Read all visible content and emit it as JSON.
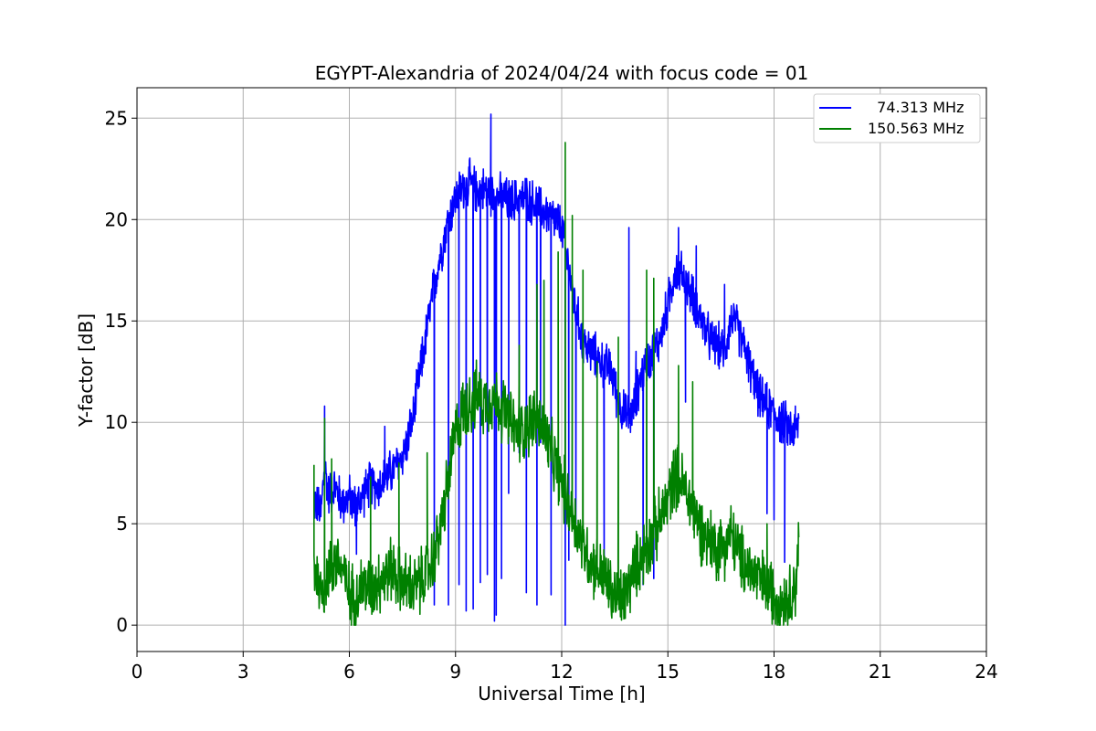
{
  "chart_data": {
    "type": "line",
    "title": "EGYPT-Alexandria of 2024/04/24 with focus code = 01",
    "xlabel": "Universal Time [h]",
    "ylabel": "Y-factor [dB]",
    "xlim": [
      0,
      24
    ],
    "ylim": [
      -1.3,
      26.5
    ],
    "xticks": [
      0,
      3,
      6,
      9,
      12,
      15,
      18,
      21,
      24
    ],
    "yticks": [
      0,
      5,
      10,
      15,
      20,
      25
    ],
    "grid": true,
    "legend_position": "top-right",
    "series": [
      {
        "name": "  74.313 MHz",
        "color": "#0000ff",
        "x": [
          5.0,
          5.2,
          5.3,
          5.4,
          5.6,
          5.8,
          6.0,
          6.2,
          6.4,
          6.6,
          6.8,
          7.0,
          7.2,
          7.4,
          7.6,
          7.8,
          8.0,
          8.2,
          8.4,
          8.6,
          8.8,
          9.0,
          9.2,
          9.4,
          9.6,
          9.8,
          10.0,
          10.2,
          10.4,
          10.6,
          10.8,
          11.0,
          11.2,
          11.4,
          11.6,
          11.8,
          12.0,
          12.2,
          12.4,
          12.6,
          12.8,
          13.0,
          13.2,
          13.4,
          13.6,
          13.8,
          14.0,
          14.2,
          14.4,
          14.6,
          14.8,
          15.0,
          15.2,
          15.4,
          15.6,
          15.8,
          16.0,
          16.2,
          16.4,
          16.6,
          16.8,
          17.0,
          17.2,
          17.4,
          17.6,
          17.8,
          18.0,
          18.2,
          18.4,
          18.6,
          18.7
        ],
        "values": [
          6.2,
          5.5,
          8.0,
          6.5,
          6.8,
          6.0,
          6.3,
          5.8,
          6.5,
          7.0,
          6.8,
          7.2,
          7.6,
          8.0,
          8.8,
          10.2,
          12.5,
          14.6,
          16.8,
          18.5,
          20.0,
          21.0,
          21.6,
          21.8,
          21.4,
          21.5,
          21.3,
          21.2,
          21.0,
          20.9,
          21.0,
          21.1,
          20.8,
          20.5,
          20.3,
          20.0,
          19.6,
          17.6,
          15.5,
          14.0,
          13.5,
          13.2,
          12.8,
          12.6,
          11.0,
          10.3,
          10.4,
          12.0,
          13.0,
          13.5,
          14.2,
          15.8,
          17.5,
          17.3,
          16.5,
          15.8,
          14.8,
          14.0,
          13.8,
          13.5,
          15.2,
          14.5,
          13.5,
          12.2,
          11.2,
          10.8,
          10.5,
          10.0,
          9.8,
          9.5,
          10.0
        ]
      },
      {
        "name": "150.563 MHz",
        "color": "#008000",
        "x": [
          5.0,
          5.2,
          5.4,
          5.6,
          5.8,
          6.0,
          6.2,
          6.4,
          6.6,
          6.8,
          7.0,
          7.2,
          7.4,
          7.6,
          7.8,
          8.0,
          8.2,
          8.4,
          8.6,
          8.8,
          9.0,
          9.2,
          9.4,
          9.6,
          9.8,
          10.0,
          10.2,
          10.4,
          10.6,
          10.8,
          11.0,
          11.2,
          11.4,
          11.6,
          11.8,
          12.0,
          12.2,
          12.4,
          12.6,
          12.8,
          13.0,
          13.2,
          13.4,
          13.6,
          13.8,
          14.0,
          14.2,
          14.4,
          14.6,
          14.8,
          15.0,
          15.2,
          15.4,
          15.6,
          15.8,
          16.0,
          16.2,
          16.4,
          16.6,
          16.8,
          17.0,
          17.2,
          17.4,
          17.6,
          17.8,
          18.0,
          18.2,
          18.4,
          18.6,
          18.7
        ],
        "values": [
          3.0,
          1.6,
          2.5,
          3.2,
          2.8,
          1.5,
          1.4,
          2.0,
          1.8,
          2.2,
          2.4,
          2.8,
          2.3,
          2.0,
          1.8,
          2.1,
          2.6,
          3.4,
          5.0,
          7.2,
          9.5,
          10.5,
          11.0,
          11.3,
          11.0,
          11.2,
          11.0,
          10.5,
          9.8,
          9.5,
          9.8,
          10.2,
          10.0,
          9.0,
          8.0,
          7.0,
          6.0,
          5.0,
          4.0,
          3.2,
          2.8,
          2.4,
          1.6,
          1.2,
          1.5,
          2.5,
          3.3,
          3.8,
          4.5,
          5.2,
          6.2,
          7.5,
          7.0,
          6.2,
          5.3,
          4.5,
          4.2,
          3.8,
          4.0,
          4.5,
          3.5,
          3.0,
          2.6,
          2.2,
          1.9,
          1.5,
          1.2,
          1.3,
          1.9,
          4.0
        ]
      }
    ],
    "spikes": [
      {
        "series": 0,
        "x": [
          5.3,
          6.2,
          7.0,
          8.4,
          8.8,
          9.1,
          9.3,
          9.5,
          9.7,
          9.9,
          10.0,
          10.1,
          10.15,
          10.3,
          10.5,
          10.8,
          11.0,
          11.3,
          11.4,
          11.7,
          12.1,
          12.2,
          12.4,
          13.2,
          13.9,
          14.1,
          14.3,
          14.6,
          15.3,
          15.5,
          15.8,
          16.6,
          17.8,
          18.0,
          18.3,
          18.6
        ],
        "values": [
          10.8,
          3.5,
          9.8,
          1.0,
          1.0,
          2.0,
          0.7,
          0.8,
          2.1,
          2.5,
          25.2,
          0.2,
          0.5,
          2.3,
          6.5,
          8.5,
          1.6,
          1.0,
          9.0,
          1.5,
          0.0,
          3.2,
          5.0,
          2.5,
          19.6,
          13.5,
          2.0,
          2.3,
          19.6,
          11.0,
          18.7,
          16.8,
          5.5,
          5.2,
          3.1,
          10.8
        ]
      },
      {
        "series": 1,
        "x": [
          5.0,
          5.3,
          5.5,
          6.6,
          7.4,
          8.2,
          9.4,
          10.8,
          11.3,
          11.5,
          11.9,
          12.1,
          12.3,
          12.6,
          13.0,
          13.6,
          14.4,
          14.6,
          15.3,
          15.7,
          17.8
        ],
        "values": [
          7.9,
          10.2,
          8.2,
          7.3,
          8.0,
          8.5,
          12.2,
          13.8,
          16.8,
          17.0,
          18.4,
          23.8,
          20.2,
          17.5,
          13.0,
          14.2,
          17.5,
          17.1,
          12.8,
          12.0,
          5.0
        ]
      }
    ]
  }
}
